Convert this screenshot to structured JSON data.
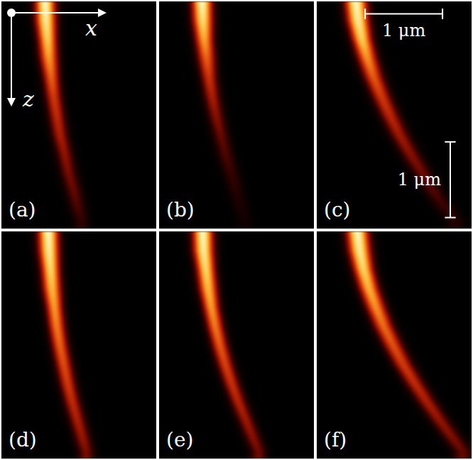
{
  "chart_data": {
    "type": "heatmap",
    "tick_labels": false,
    "xlim": [
      0,
      2
    ],
    "ylim": [
      0,
      3
    ],
    "intensity_range": [
      0,
      1
    ],
    "axis_labels": {
      "x": "x",
      "z": "z"
    },
    "scale_bar": {
      "length": 1,
      "label": "1 μm"
    },
    "z": [
      0,
      0.25,
      0.5,
      0.75,
      1.0,
      1.25,
      1.5,
      1.75,
      2.0,
      2.25,
      2.5,
      2.75,
      2.9
    ],
    "panels": [
      {
        "label": "(a)",
        "x_center": [
          0.56,
          0.57,
          0.59,
          0.61,
          0.64,
          0.67,
          0.71,
          0.75,
          0.81,
          0.86,
          0.93,
          0.99,
          1.03
        ],
        "intensity": [
          1,
          0.95,
          0.85,
          0.72,
          0.6,
          0.5,
          0.45,
          0.4,
          0.35,
          0.3,
          0.26,
          0.2,
          0.15
        ],
        "width": [
          0.13,
          0.13,
          0.12,
          0.12,
          0.11,
          0.11,
          0.11,
          0.11,
          0.11,
          0.11,
          0.11,
          0.11,
          0.11
        ]
      },
      {
        "label": "(b)",
        "x_center": [
          0.55,
          0.56,
          0.58,
          0.61,
          0.64,
          0.68,
          0.73,
          0.79,
          0.85,
          0.92,
          0.99,
          1.06,
          1.1
        ],
        "intensity": [
          1,
          0.9,
          0.75,
          0.6,
          0.48,
          0.4,
          0.33,
          0.27,
          0.22,
          0.17,
          0.13,
          0.09,
          0.07
        ],
        "width": [
          0.13,
          0.13,
          0.12,
          0.12,
          0.11,
          0.11,
          0.11,
          0.11,
          0.11,
          0.11,
          0.11,
          0.11,
          0.11
        ]
      },
      {
        "label": "(c)",
        "x_center": [
          0.5,
          0.53,
          0.58,
          0.65,
          0.73,
          0.83,
          0.94,
          1.06,
          1.2,
          1.35,
          1.5,
          1.67,
          1.78
        ],
        "intensity": [
          1,
          0.95,
          0.85,
          0.7,
          0.58,
          0.5,
          0.44,
          0.38,
          0.33,
          0.28,
          0.22,
          0.16,
          0.12
        ],
        "width": [
          0.14,
          0.14,
          0.13,
          0.13,
          0.13,
          0.13,
          0.13,
          0.13,
          0.13,
          0.13,
          0.13,
          0.13,
          0.13
        ]
      },
      {
        "label": "(d)",
        "x_center": [
          0.6,
          0.61,
          0.63,
          0.65,
          0.68,
          0.71,
          0.75,
          0.8,
          0.85,
          0.91,
          0.98,
          1.05,
          1.09
        ],
        "intensity": [
          1,
          0.95,
          0.88,
          0.8,
          0.72,
          0.66,
          0.6,
          0.55,
          0.5,
          0.45,
          0.4,
          0.35,
          0.3
        ],
        "width": [
          0.13,
          0.13,
          0.12,
          0.12,
          0.11,
          0.11,
          0.11,
          0.11,
          0.11,
          0.11,
          0.11,
          0.11,
          0.11
        ]
      },
      {
        "label": "(e)",
        "x_center": [
          0.56,
          0.57,
          0.6,
          0.63,
          0.67,
          0.72,
          0.78,
          0.85,
          0.93,
          1.02,
          1.12,
          1.22,
          1.28
        ],
        "intensity": [
          1,
          0.95,
          0.88,
          0.8,
          0.72,
          0.65,
          0.58,
          0.52,
          0.47,
          0.42,
          0.37,
          0.32,
          0.28
        ],
        "width": [
          0.13,
          0.13,
          0.12,
          0.12,
          0.11,
          0.11,
          0.11,
          0.11,
          0.11,
          0.11,
          0.11,
          0.11,
          0.11
        ]
      },
      {
        "label": "(f)",
        "x_center": [
          0.52,
          0.55,
          0.6,
          0.67,
          0.76,
          0.86,
          0.98,
          1.11,
          1.26,
          1.42,
          1.59,
          1.77,
          1.88
        ],
        "intensity": [
          1,
          0.95,
          0.87,
          0.78,
          0.7,
          0.62,
          0.56,
          0.5,
          0.45,
          0.4,
          0.35,
          0.3,
          0.26
        ],
        "width": [
          0.14,
          0.14,
          0.13,
          0.13,
          0.13,
          0.13,
          0.13,
          0.13,
          0.13,
          0.13,
          0.13,
          0.13,
          0.13
        ]
      }
    ]
  }
}
